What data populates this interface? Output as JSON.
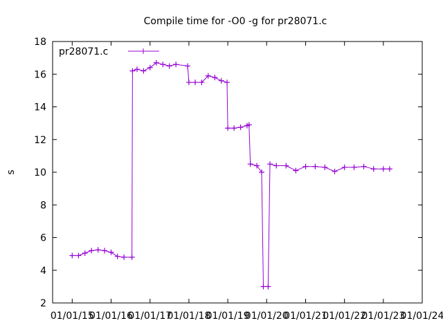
{
  "chart_data": {
    "type": "scatter",
    "title": "Compile time for -O0 -g for pr28071.c",
    "xlabel": "",
    "ylabel": "s",
    "x_ticks": [
      "01/01/15",
      "01/01/16",
      "01/01/17",
      "01/01/18",
      "01/01/19",
      "01/01/20",
      "01/01/21",
      "01/01/22",
      "01/01/23",
      "01/01/24"
    ],
    "xlim": [
      "2014-07-01",
      "2024-01-01"
    ],
    "ylim": [
      2,
      18
    ],
    "y_ticks": [
      2,
      4,
      6,
      8,
      10,
      12,
      14,
      16,
      18
    ],
    "grid": false,
    "legend_position": "top-left",
    "series": [
      {
        "name": "pr28071.c",
        "color": "#9400d3",
        "marker": "plus",
        "points": [
          [
            "2015-01-01",
            4.9
          ],
          [
            "2015-03-01",
            4.9
          ],
          [
            "2015-05-01",
            5.05
          ],
          [
            "2015-07-01",
            5.2
          ],
          [
            "2015-09-01",
            5.25
          ],
          [
            "2015-11-01",
            5.2
          ],
          [
            "2016-01-01",
            5.1
          ],
          [
            "2016-03-01",
            4.85
          ],
          [
            "2016-05-01",
            4.8
          ],
          [
            "2016-07-15",
            4.8
          ],
          [
            "2016-07-20",
            16.2
          ],
          [
            "2016-09-01",
            16.3
          ],
          [
            "2016-11-01",
            16.2
          ],
          [
            "2017-01-01",
            16.4
          ],
          [
            "2017-03-01",
            16.7
          ],
          [
            "2017-05-01",
            16.6
          ],
          [
            "2017-07-01",
            16.5
          ],
          [
            "2017-09-01",
            16.6
          ],
          [
            "2017-12-20",
            16.5
          ],
          [
            "2018-01-01",
            15.5
          ],
          [
            "2018-03-01",
            15.5
          ],
          [
            "2018-05-01",
            15.5
          ],
          [
            "2018-07-01",
            15.9
          ],
          [
            "2018-09-01",
            15.8
          ],
          [
            "2018-11-01",
            15.6
          ],
          [
            "2018-12-25",
            15.5
          ],
          [
            "2019-01-01",
            12.7
          ],
          [
            "2019-03-01",
            12.7
          ],
          [
            "2019-05-01",
            12.75
          ],
          [
            "2019-07-01",
            12.85
          ],
          [
            "2019-07-20",
            12.9
          ],
          [
            "2019-08-01",
            10.5
          ],
          [
            "2019-10-01",
            10.4
          ],
          [
            "2019-11-15",
            10.0
          ],
          [
            "2019-12-01",
            3.0
          ],
          [
            "2020-01-15",
            3.0
          ],
          [
            "2020-02-01",
            10.5
          ],
          [
            "2020-04-01",
            10.4
          ],
          [
            "2020-07-01",
            10.4
          ],
          [
            "2020-10-01",
            10.1
          ],
          [
            "2021-01-01",
            10.35
          ],
          [
            "2021-04-01",
            10.35
          ],
          [
            "2021-07-01",
            10.3
          ],
          [
            "2021-10-01",
            10.05
          ],
          [
            "2022-01-01",
            10.3
          ],
          [
            "2022-04-01",
            10.3
          ],
          [
            "2022-07-01",
            10.35
          ],
          [
            "2022-10-01",
            10.2
          ],
          [
            "2023-01-01",
            10.2
          ],
          [
            "2023-03-01",
            10.2
          ]
        ]
      }
    ]
  }
}
